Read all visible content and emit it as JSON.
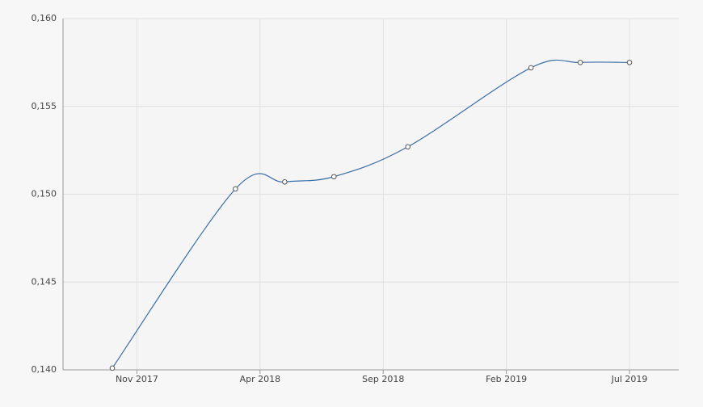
{
  "chart_data": {
    "type": "line",
    "x": [
      "2017-10",
      "2018-03",
      "2018-05",
      "2018-07",
      "2018-10",
      "2019-03",
      "2019-05",
      "2019-07"
    ],
    "series": [
      {
        "color": "#3a6ea5",
        "values": [
          0.1401,
          0.1503,
          0.1507,
          0.151,
          0.1527,
          0.1572,
          0.1575,
          0.1575
        ]
      }
    ],
    "xlim": [
      "2017-08",
      "2019-09"
    ],
    "xticks": [
      {
        "value": "2017-11",
        "label": "Nov 2017"
      },
      {
        "value": "2018-04",
        "label": "Apr 2018"
      },
      {
        "value": "2018-09",
        "label": "Sep 2018"
      },
      {
        "value": "2019-02",
        "label": "Feb 2019"
      },
      {
        "value": "2019-07",
        "label": "Jul 2019"
      }
    ],
    "ylim": [
      0.14,
      0.16
    ],
    "yticks": [
      {
        "value": 0.14,
        "label": "0,140"
      },
      {
        "value": 0.145,
        "label": "0,145"
      },
      {
        "value": 0.15,
        "label": "0,150"
      },
      {
        "value": 0.155,
        "label": "0,155"
      },
      {
        "value": 0.16,
        "label": "0,160"
      }
    ],
    "grid": true
  }
}
